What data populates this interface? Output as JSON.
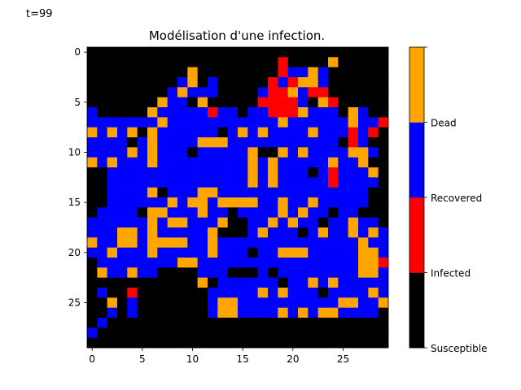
{
  "time_label": "t=99",
  "chart_data": {
    "type": "heatmap",
    "title": "Modélisation d'une infection.",
    "xlabel": "",
    "ylabel": "",
    "rows": 30,
    "cols": 30,
    "xticks": [
      0,
      5,
      10,
      15,
      20,
      25
    ],
    "yticks": [
      0,
      5,
      10,
      15,
      20,
      25
    ],
    "colorbar": {
      "labels": [
        "Susceptible",
        "Infected",
        "Recovered",
        "Dead"
      ],
      "colors": [
        "#000000",
        "#ff0000",
        "#0000ff",
        "#ffa500"
      ]
    },
    "grid": false,
    "legend": "colorbar-right",
    "state_codes": {
      "S": 0,
      "I": 1,
      "R": 2,
      "D": 3
    },
    "cells": [
      "SSSSSSSSSSSSSSSSSSSSSSSSSSSSSS",
      "SSSSSSSSSSSSSSSSSSSISSSSDSSSSS",
      "SSSSSSSSSSDSSSSSSSSIRRDRSSSSSS",
      "SSSSSSSSSRDSRSSSSSIRIDDRSSSSSS",
      "SSSSSSSSRDRRRSSSSRIIDRIISSSSSS",
      "SSSSSSSDRRSDSSSSSIIIIRSDISSSSS",
      "RSSSSSDRRRRRIRRSRRIIIDRRRSDRSS",
      "RRRRRRRDRRRRRRRRRRRDRRRRRRDRRI",
      "DRDRDSDRRRRRRSRDRDRRRRDRRRIRIS",
      "RRRRSRDRRRRDDDRRRRRRRRRRRSIRSS",
      "RRRRDRDRRRSRRRRRDSSDRDRRRRDDRS",
      "DRDRRRDRRRRRRRRRDRDRRRRRDRRDSS",
      "SSRRRRRRRRRRRRRRDRDRRRSRIRRRDS",
      "SSRRRRRRRRRRRRRRDRDRRRRRIRRRRS",
      "SSRRRRDSRRRDDRRRRRRRRRRRRRRRSS",
      "SSRRRRRRDRDDRDDDDRRDRRDRRRRRSS",
      "SRRRRSDDRRRDRRSRRRRDRDRRSRRSSS",
      "RRRRRRDRDDRRRDSSRRDRDRRSRRDRRS",
      "RRRDDRDRRRRRDSSSRDRRRSRDRRDRDR",
      "DRRDDRDDDDRRDRRRRRRRRRRRRRRDRR",
      "RRDRRRDRRRRRDRRRSRRDDDRRRRRDDR",
      "SRRRRRRRRDDRRRRRRRRRRRRRRRRDDI",
      "SDRRDRRSSSSRRRSSSRSRRRRRRRRDDR",
      "SSSSSSSSSSSDSRRRRRRSRRDRDRRRRR",
      "SRSSISSSSSSSRRRRRDRDRRRSRRRRDR",
      "SSDSRSSSSSSSRDDRRRRRRRRRRDDRRD",
      "SSRSRSSSSSSSRDDRRRRDRDRDDRRRRS",
      "SRSSSSSSSSSSSSSSSSSSSSSSSSSSSS",
      "RSSSSSSSSSSSSSSSSSSSSSSSSSSSSS",
      "SSSSSSSSSSSSSSSSSSSSSSSSSSSSSS"
    ]
  }
}
